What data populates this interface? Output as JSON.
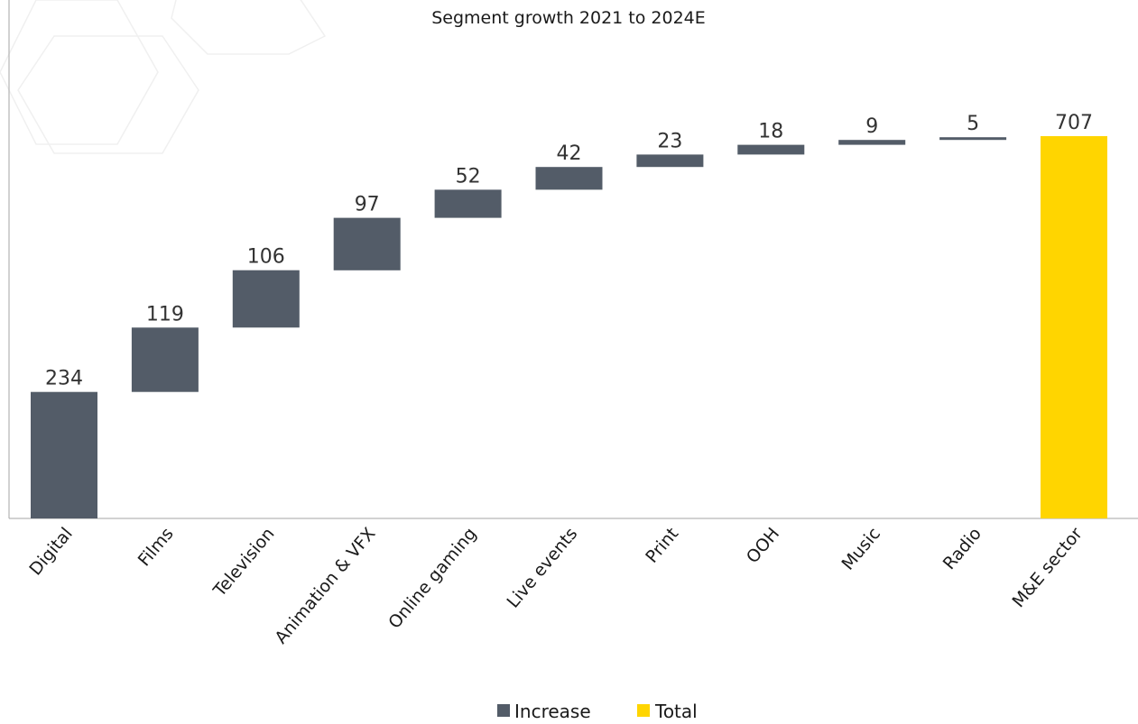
{
  "chart_data": {
    "type": "bar",
    "subtype": "waterfall",
    "title": "Segment growth 2021 to 2024E",
    "xlabel": "",
    "ylabel": "",
    "categories": [
      "Digital",
      "Films",
      "Television",
      "Animation & VFX",
      "Online gaming",
      "Live events",
      "Print",
      "OOH",
      "Music",
      "Radio",
      "M&E sector"
    ],
    "values": [
      234,
      119,
      106,
      97,
      52,
      42,
      23,
      18,
      9,
      5,
      707
    ],
    "kinds": [
      "increase",
      "increase",
      "increase",
      "increase",
      "increase",
      "increase",
      "increase",
      "increase",
      "increase",
      "increase",
      "total"
    ],
    "series": [
      {
        "name": "Increase",
        "color": "#535c68"
      },
      {
        "name": "Total",
        "color": "#ffd500"
      }
    ],
    "ylim": [
      0,
      707
    ],
    "grid": false,
    "legend_position": "bottom"
  }
}
